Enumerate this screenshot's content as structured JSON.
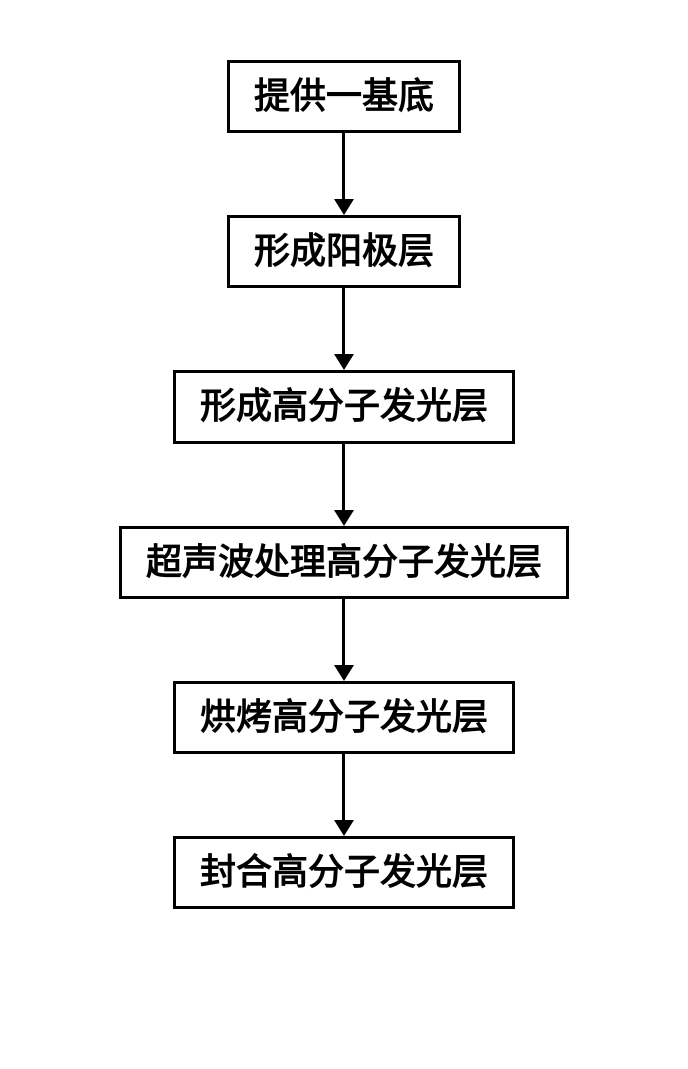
{
  "flowchart": {
    "type": "flowchart",
    "direction": "vertical",
    "box_border_color": "#000000",
    "box_border_width": 3,
    "box_background": "#ffffff",
    "text_color": "#000000",
    "font_size": 36,
    "font_weight": "bold",
    "arrow_color": "#000000",
    "arrow_line_width": 3,
    "arrow_head_width": 20,
    "arrow_head_height": 16,
    "steps": [
      {
        "label": "提供一基底",
        "arrow_length": 82
      },
      {
        "label": "形成阳极层",
        "arrow_length": 82
      },
      {
        "label": "形成高分子发光层",
        "arrow_length": 82
      },
      {
        "label": "超声波处理高分子发光层",
        "arrow_length": 82
      },
      {
        "label": "烘烤高分子发光层",
        "arrow_length": 82
      },
      {
        "label": "封合高分子发光层",
        "arrow_length": 0
      }
    ]
  }
}
